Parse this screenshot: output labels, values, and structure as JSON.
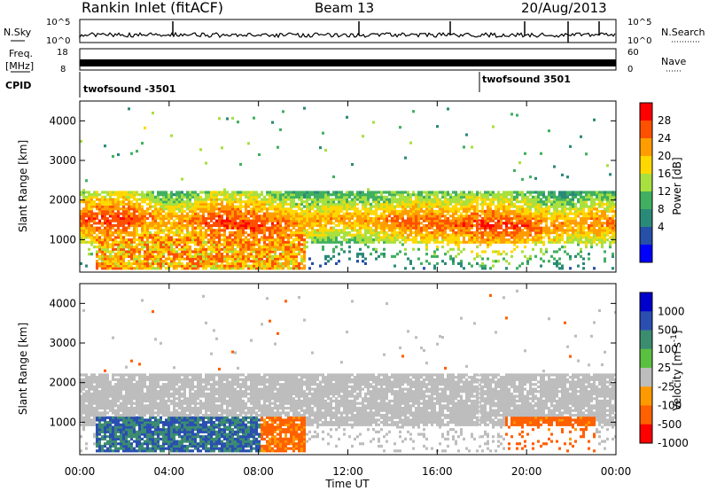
{
  "header": {
    "title": "Rankin Inlet (fitACF)",
    "beam": "Beam 13",
    "date": "20/Aug/2013"
  },
  "panels": {
    "nsky_label": "N.Sky",
    "nsearch_label": "N.Search",
    "nsky_ticks": [
      "10^5",
      "10^0"
    ],
    "nsky_ticks_right": [
      "10^5",
      "10^0"
    ],
    "freq_label_1": "Freq.",
    "freq_label_2": "[MHz]",
    "freq_ticks": [
      "18",
      "8"
    ],
    "nave_ticks": [
      "60",
      "0"
    ],
    "nave_label": "Nave",
    "cpid_label": "CPID",
    "cpid_entries": [
      "twofsound -3501",
      "twofsound 3501"
    ]
  },
  "colorbars": {
    "power": {
      "label": "Power [dB]",
      "ticks": [
        "28",
        "24",
        "20",
        "16",
        "12",
        "8",
        "4"
      ],
      "colors": [
        "#ff0000",
        "#ff5000",
        "#ff9d00",
        "#ffd800",
        "#a8e040",
        "#40b060",
        "#2a8a78",
        "#264fa8",
        "#0000ff"
      ]
    },
    "velocity": {
      "label": "Velocity [m s^-1]",
      "ticks": [
        "1000",
        "500",
        "100",
        "25",
        "-25",
        "-100",
        "-500",
        "-1000"
      ],
      "colors": [
        "#0000cc",
        "#2a4fb0",
        "#3c8c70",
        "#5ac040",
        "#bdbdbd",
        "#ff9900",
        "#ff6000",
        "#ff0000"
      ]
    }
  },
  "chart_data": [
    {
      "type": "heatmap",
      "title": "",
      "xlabel": "",
      "ylabel": "Slant Range [km]",
      "xlim": [
        "00:00",
        "00:00"
      ],
      "ylim": [
        180,
        4500
      ],
      "x_ticks": [
        "00:00",
        "04:00",
        "08:00",
        "12:00",
        "16:00",
        "20:00",
        "00:00"
      ],
      "y_ticks": [
        1000,
        2000,
        3000,
        4000
      ],
      "colorbar": "Power [dB]",
      "series": [
        {
          "time_hr": [
            0,
            1,
            2,
            3,
            4,
            5,
            6,
            7,
            8,
            9,
            10,
            11,
            12,
            13,
            14,
            15,
            16,
            17,
            18,
            19,
            20,
            21,
            22,
            23
          ],
          "range_center_km": [
            1500,
            1500,
            1500,
            1500,
            1450,
            1450,
            1450,
            1400,
            1350,
            1350,
            1400,
            1500,
            1500,
            1450,
            1450,
            1400,
            1400,
            1350,
            1350,
            1300,
            1300,
            1300,
            1350,
            1400
          ],
          "peak_power_db": [
            26,
            28,
            28,
            24,
            22,
            24,
            28,
            28,
            28,
            26,
            22,
            22,
            22,
            22,
            24,
            26,
            26,
            26,
            28,
            28,
            26,
            24,
            22,
            24
          ]
        }
      ]
    },
    {
      "type": "heatmap",
      "title": "",
      "xlabel": "Time UT",
      "ylabel": "Slant Range [km]",
      "xlim": [
        "00:00",
        "00:00"
      ],
      "ylim": [
        180,
        4500
      ],
      "x_ticks": [
        "00:00",
        "04:00",
        "08:00",
        "12:00",
        "16:00",
        "20:00",
        "00:00"
      ],
      "y_ticks": [
        1000,
        2000,
        3000,
        4000
      ],
      "colorbar": "Velocity [m s^-1]",
      "series": [
        {
          "time_hr": [
            0,
            2,
            4,
            6,
            8,
            10,
            12,
            14,
            16,
            18,
            20,
            22
          ],
          "low_range_velocity_ms": [
            200,
            300,
            300,
            200,
            -100,
            0,
            0,
            0,
            0,
            0,
            -200,
            -100
          ]
        }
      ]
    }
  ],
  "xaxis": {
    "ticks": [
      "00:00",
      "04:00",
      "08:00",
      "12:00",
      "16:00",
      "20:00",
      "00:00"
    ],
    "label": "Time UT"
  },
  "yaxis": {
    "label": "Slant Range [km]",
    "ticks": [
      "1000",
      "2000",
      "3000",
      "4000"
    ]
  }
}
